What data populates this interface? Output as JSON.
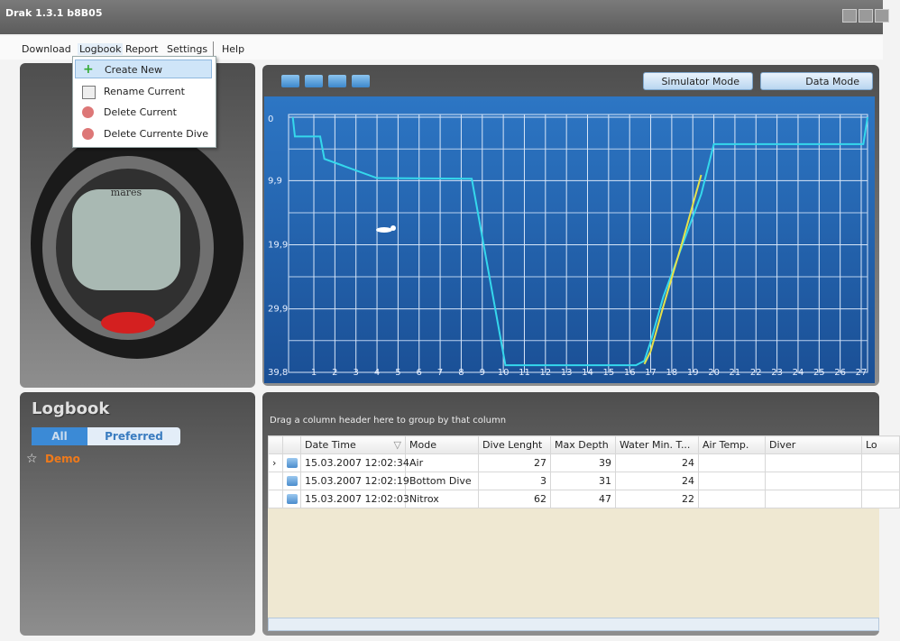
{
  "window": {
    "title": "Drak 1.3.1 b8B05"
  },
  "menu": {
    "items": [
      "Download",
      "Logbook",
      "Report",
      "Settings",
      "Help"
    ]
  },
  "dropdown": {
    "items": [
      "Create New",
      "Rename Current",
      "Delete Current",
      "Delete Currente Dive"
    ]
  },
  "device": {
    "brand": "mares"
  },
  "logbook": {
    "title": "Logbook",
    "tabs": [
      "All",
      "Preferred"
    ],
    "entries": [
      "Demo"
    ]
  },
  "toolbar": {
    "buttons": [
      "Simulator Mode",
      "Data Mode"
    ]
  },
  "chart_data": {
    "type": "line",
    "x": [
      0,
      0.1,
      1.3,
      1.5,
      4,
      8.5,
      10.1,
      16.3,
      16.7,
      17,
      17.6,
      18.5,
      19.4,
      20,
      27.1,
      27.3
    ],
    "series": [
      {
        "color": "#35d8ec",
        "values": [
          0,
          3,
          3,
          6.5,
          9.5,
          9.6,
          38.7,
          38.7,
          38,
          35,
          28,
          20,
          12,
          4.2,
          4.2,
          0
        ]
      },
      {
        "color": "#e6e24a",
        "values": [
          null,
          null,
          null,
          null,
          null,
          null,
          null,
          null,
          38.5,
          36.5,
          29.5,
          19.5,
          9,
          null,
          null,
          null
        ]
      }
    ],
    "xlim": [
      -0.2,
      27.3
    ],
    "ylim": [
      0,
      39.8
    ],
    "y_reversed": true,
    "xticks": [
      1,
      2,
      3,
      4,
      5,
      6,
      7,
      8,
      9,
      10,
      11,
      12,
      13,
      14,
      15,
      16,
      17,
      18,
      19,
      20,
      21,
      22,
      23,
      24,
      25,
      26,
      27
    ],
    "yticks": [
      0,
      {
        "value": 9.9,
        "label": "9,9"
      },
      {
        "value": 19.9,
        "label": "19,9"
      },
      {
        "value": 29.9,
        "label": "29,9"
      },
      {
        "value": 39.8,
        "label": "39,8"
      }
    ],
    "grid": true
  },
  "table": {
    "hint": "Drag a column header here to group by that column",
    "columns": [
      "Date Time",
      "Mode",
      "Dive Lenght",
      "Max Depth",
      "Water Min. T...",
      "Air Temp.",
      "Diver",
      "Lo"
    ],
    "rows": [
      [
        "15.03.2007 12:02:34",
        "Air",
        27,
        39,
        24
      ],
      [
        "15.03.2007 12:02:19",
        "Bottom Dive",
        3,
        31,
        24
      ],
      [
        "15.03.2007 12:02:03",
        "Nitrox",
        62,
        47,
        22
      ]
    ]
  }
}
